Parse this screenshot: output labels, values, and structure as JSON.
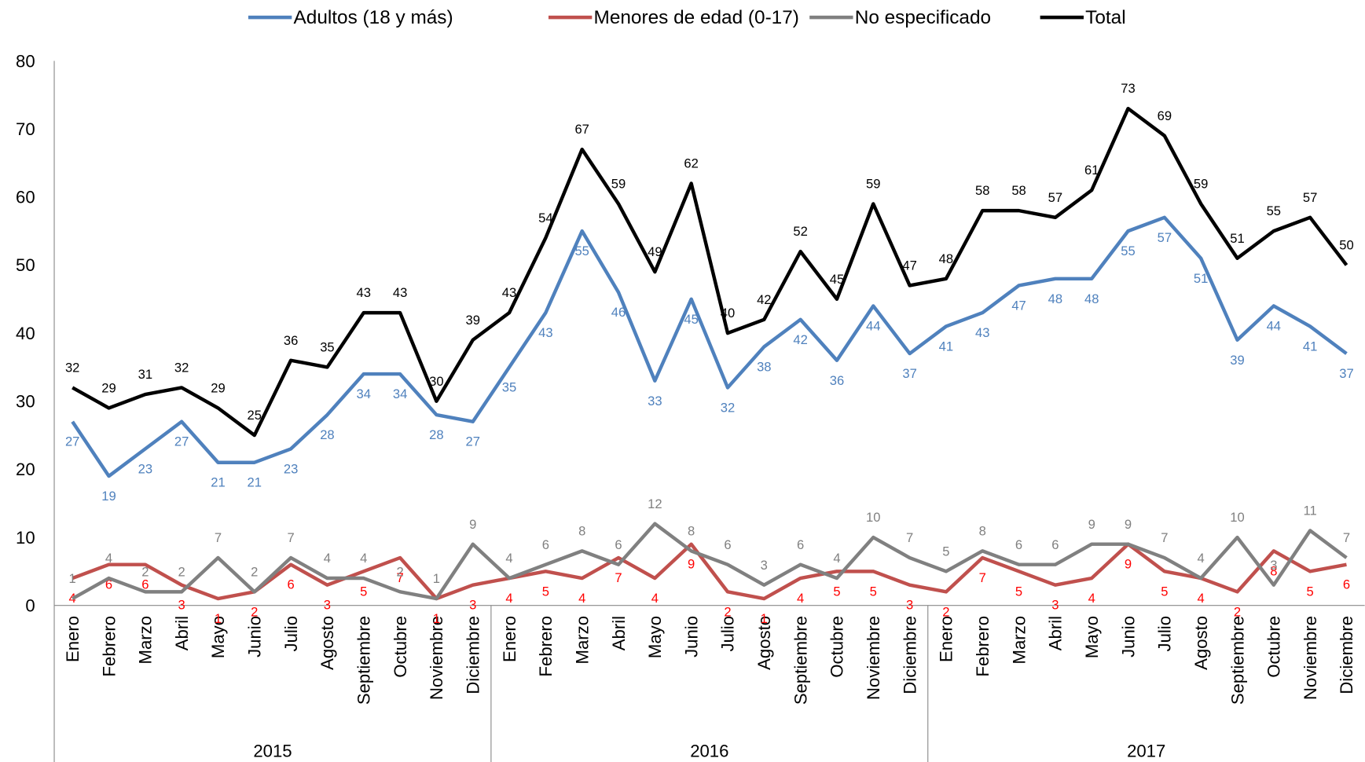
{
  "chart_data": {
    "type": "line",
    "categories": [
      "Enero",
      "Febrero",
      "Marzo",
      "Abril",
      "Mayo",
      "Junio",
      "Julio",
      "Agosto",
      "Septiembre",
      "Octubre",
      "Noviembre",
      "Diciembre",
      "Enero",
      "Febrero",
      "Marzo",
      "Abril",
      "Mayo",
      "Junio",
      "Julio",
      "Agosto",
      "Septiembre",
      "Octubre",
      "Noviembre",
      "Diciembre",
      "Enero",
      "Febrero",
      "Marzo",
      "Abril",
      "Mayo",
      "Junio",
      "Julio",
      "Agosto",
      "Septiembre",
      "Octubre",
      "Noviembre",
      "Diciembre"
    ],
    "category_groups": [
      "2015",
      "2016",
      "2017"
    ],
    "series": [
      {
        "name": "Adultos (18 y más)",
        "color": "#4f81bd",
        "label_color": "#4f81bd",
        "label_position": "below",
        "values": [
          27,
          19,
          23,
          27,
          21,
          21,
          23,
          28,
          34,
          34,
          28,
          27,
          35,
          43,
          55,
          46,
          33,
          45,
          32,
          38,
          42,
          36,
          44,
          37,
          41,
          43,
          47,
          48,
          48,
          55,
          57,
          51,
          39,
          44,
          41,
          37
        ]
      },
      {
        "name": "Menores de edad (0-17)",
        "color": "#c0504d",
        "label_color": "#ff0000",
        "label_position": "below",
        "values": [
          4,
          6,
          6,
          3,
          1,
          2,
          6,
          3,
          5,
          7,
          1,
          3,
          4,
          5,
          4,
          7,
          4,
          9,
          2,
          1,
          4,
          5,
          5,
          3,
          2,
          7,
          5,
          3,
          4,
          9,
          5,
          4,
          2,
          8,
          5,
          6
        ]
      },
      {
        "name": "No especificado",
        "color": "#808080",
        "label_color": "#808080",
        "label_position": "above",
        "values": [
          1,
          4,
          2,
          2,
          7,
          2,
          7,
          4,
          4,
          2,
          1,
          9,
          4,
          6,
          8,
          6,
          12,
          8,
          6,
          3,
          6,
          4,
          10,
          7,
          5,
          8,
          6,
          6,
          9,
          9,
          7,
          4,
          10,
          3,
          11,
          7
        ]
      },
      {
        "name": "Total",
        "color": "#000000",
        "label_color": "#000000",
        "label_position": "above",
        "values": [
          32,
          29,
          31,
          32,
          29,
          25,
          36,
          35,
          43,
          43,
          30,
          39,
          43,
          54,
          67,
          59,
          49,
          62,
          40,
          42,
          52,
          45,
          59,
          47,
          48,
          58,
          58,
          57,
          61,
          73,
          69,
          59,
          51,
          55,
          57,
          50
        ]
      }
    ],
    "ylim": [
      0,
      80
    ],
    "yticks": [
      0,
      10,
      20,
      30,
      40,
      50,
      60,
      70,
      80
    ],
    "grid": false,
    "legend": "top"
  }
}
